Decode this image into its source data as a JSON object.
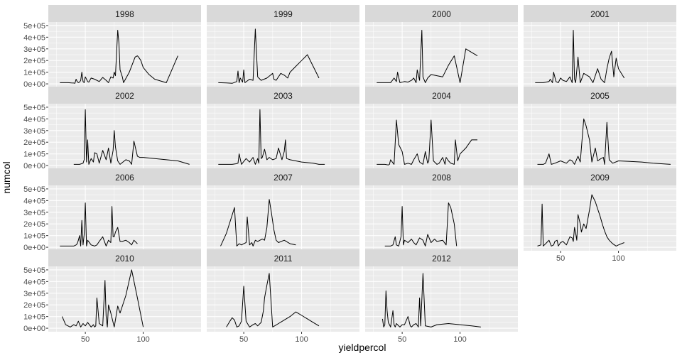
{
  "chart_data": {
    "type": "line",
    "facet_layout": "wrap 4 columns",
    "xlabel": "yieldpercol",
    "ylabel": "numcol",
    "xlim": [
      18,
      150
    ],
    "ylim": [
      -30000,
      530000
    ],
    "x_ticks": [
      50,
      100
    ],
    "x_tick_labels": [
      "50",
      "100"
    ],
    "y_ticks": [
      0,
      100000,
      200000,
      300000,
      400000,
      500000
    ],
    "y_tick_labels": [
      "0e+00",
      "1e+05",
      "2e+05",
      "3e+05",
      "4e+05",
      "5e+05"
    ],
    "x_minor_ticks": [
      25,
      75,
      125
    ],
    "y_minor_ticks": [
      50000,
      150000,
      250000,
      350000,
      450000
    ],
    "style": {
      "panel_bg": "#ebebeb",
      "strip_bg": "#d9d9d9",
      "grid_color": "#ffffff",
      "line_color": "#000000"
    },
    "panels": [
      {
        "label": "1998",
        "x": [
          28,
          35,
          38,
          40,
          41,
          42,
          43,
          44,
          45,
          46,
          47,
          48,
          49,
          50,
          52,
          53,
          55,
          58,
          62,
          65,
          68,
          70,
          72,
          74,
          75,
          76,
          78,
          79,
          80,
          82,
          83,
          88,
          93,
          95,
          96,
          98,
          100,
          105,
          110,
          115,
          120,
          130
        ],
        "y": [
          10000,
          10000,
          8000,
          7000,
          5000,
          40000,
          20000,
          10000,
          15000,
          30000,
          100000,
          20000,
          10000,
          60000,
          20000,
          15000,
          50000,
          40000,
          20000,
          55000,
          30000,
          10000,
          60000,
          50000,
          100000,
          70000,
          460000,
          350000,
          120000,
          60000,
          10000,
          100000,
          230000,
          240000,
          230000,
          200000,
          140000,
          80000,
          40000,
          25000,
          10000,
          240000
        ]
      },
      {
        "label": "1999",
        "x": [
          28,
          35,
          40,
          44,
          45,
          46,
          47,
          49,
          50,
          51,
          55,
          58,
          60,
          62,
          63,
          65,
          70,
          75,
          76,
          78,
          82,
          85,
          88,
          90,
          95,
          100,
          105,
          110,
          115
        ],
        "y": [
          10000,
          8000,
          5000,
          20000,
          110000,
          10000,
          50000,
          15000,
          120000,
          10000,
          40000,
          30000,
          470000,
          60000,
          50000,
          30000,
          50000,
          90000,
          40000,
          30000,
          90000,
          75000,
          50000,
          100000,
          150000,
          200000,
          250000,
          150000,
          50000
        ]
      },
      {
        "label": "2000",
        "x": [
          28,
          40,
          43,
          45,
          46,
          48,
          52,
          55,
          58,
          60,
          62,
          63,
          65,
          67,
          68,
          70,
          72,
          75,
          80,
          85,
          90,
          95,
          100,
          105,
          110,
          115
        ],
        "y": [
          10000,
          10000,
          50000,
          20000,
          100000,
          10000,
          20000,
          15000,
          30000,
          50000,
          10000,
          120000,
          30000,
          460000,
          60000,
          10000,
          50000,
          80000,
          70000,
          60000,
          160000,
          240000,
          10000,
          300000,
          270000,
          240000
        ]
      },
      {
        "label": "2001",
        "x": [
          28,
          35,
          40,
          41,
          43,
          44,
          46,
          48,
          50,
          52,
          55,
          58,
          60,
          61,
          62,
          63,
          65,
          67,
          70,
          75,
          78,
          82,
          85,
          88,
          90,
          92,
          94,
          96,
          98,
          100,
          105
        ],
        "y": [
          10000,
          10000,
          20000,
          40000,
          10000,
          100000,
          20000,
          10000,
          50000,
          30000,
          20000,
          60000,
          10000,
          460000,
          40000,
          10000,
          230000,
          10000,
          90000,
          60000,
          10000,
          130000,
          40000,
          10000,
          130000,
          220000,
          280000,
          60000,
          220000,
          130000,
          50000
        ]
      },
      {
        "label": "2002",
        "x": [
          40,
          45,
          48,
          49,
          50,
          51,
          52,
          53,
          55,
          57,
          58,
          60,
          62,
          65,
          68,
          70,
          72,
          74,
          75,
          76,
          78,
          80,
          85,
          88,
          90,
          92,
          95,
          97,
          100,
          110,
          120,
          130,
          140
        ],
        "y": [
          10000,
          10000,
          20000,
          50000,
          480000,
          30000,
          220000,
          10000,
          60000,
          30000,
          110000,
          100000,
          20000,
          130000,
          50000,
          150000,
          20000,
          130000,
          300000,
          160000,
          40000,
          10000,
          50000,
          40000,
          10000,
          210000,
          80000,
          70000,
          70000,
          60000,
          50000,
          40000,
          10000
        ]
      },
      {
        "label": "2003",
        "x": [
          28,
          40,
          43,
          45,
          46,
          48,
          52,
          55,
          58,
          60,
          62,
          63,
          64,
          65,
          66,
          68,
          70,
          72,
          75,
          78,
          80,
          83,
          85,
          86,
          87,
          90,
          95,
          100,
          110,
          115,
          120
        ],
        "y": [
          10000,
          10000,
          15000,
          20000,
          100000,
          10000,
          60000,
          30000,
          70000,
          10000,
          60000,
          20000,
          480000,
          60000,
          70000,
          140000,
          50000,
          70000,
          50000,
          60000,
          150000,
          50000,
          120000,
          220000,
          60000,
          50000,
          40000,
          30000,
          20000,
          10000,
          10000
        ]
      },
      {
        "label": "2004",
        "x": [
          28,
          35,
          38,
          39,
          40,
          43,
          45,
          47,
          50,
          52,
          55,
          58,
          60,
          63,
          65,
          68,
          70,
          72,
          73,
          75,
          77,
          80,
          82,
          85,
          87,
          88,
          90,
          92,
          95,
          96,
          98,
          100,
          105,
          110,
          115
        ],
        "y": [
          10000,
          10000,
          5000,
          10000,
          50000,
          10000,
          390000,
          180000,
          120000,
          10000,
          20000,
          10000,
          50000,
          100000,
          30000,
          10000,
          120000,
          20000,
          40000,
          390000,
          40000,
          10000,
          20000,
          70000,
          10000,
          70000,
          40000,
          20000,
          10000,
          220000,
          40000,
          100000,
          150000,
          220000,
          220000
        ]
      },
      {
        "label": "2005",
        "x": [
          30,
          35,
          37,
          40,
          42,
          45,
          50,
          55,
          58,
          60,
          62,
          65,
          67,
          70,
          72,
          75,
          77,
          80,
          82,
          85,
          87,
          88,
          90,
          92,
          95,
          100,
          110,
          120,
          130,
          145
        ],
        "y": [
          10000,
          10000,
          20000,
          100000,
          10000,
          20000,
          40000,
          20000,
          50000,
          40000,
          10000,
          80000,
          30000,
          400000,
          340000,
          220000,
          30000,
          150000,
          40000,
          60000,
          70000,
          10000,
          370000,
          50000,
          20000,
          40000,
          35000,
          30000,
          20000,
          10000
        ]
      },
      {
        "label": "2006",
        "x": [
          28,
          35,
          40,
          42,
          43,
          44,
          45,
          46,
          47,
          48,
          49,
          50,
          51,
          52,
          55,
          58,
          60,
          62,
          65,
          68,
          70,
          72,
          73,
          74,
          75,
          76,
          78,
          80,
          82,
          85,
          88,
          90,
          92,
          95
        ],
        "y": [
          10000,
          10000,
          10000,
          20000,
          30000,
          60000,
          100000,
          10000,
          230000,
          20000,
          110000,
          380000,
          10000,
          60000,
          20000,
          10000,
          20000,
          50000,
          90000,
          10000,
          60000,
          40000,
          350000,
          90000,
          90000,
          130000,
          170000,
          50000,
          50000,
          60000,
          40000,
          20000,
          60000,
          30000
        ]
      },
      {
        "label": "2007",
        "x": [
          30,
          35,
          42,
          44,
          46,
          48,
          50,
          52,
          53,
          55,
          57,
          58,
          60,
          62,
          64,
          66,
          68,
          70,
          72,
          74,
          76,
          78,
          80,
          85,
          90,
          95
        ],
        "y": [
          10000,
          120000,
          340000,
          10000,
          30000,
          20000,
          30000,
          40000,
          260000,
          20000,
          40000,
          10000,
          60000,
          50000,
          60000,
          70000,
          60000,
          170000,
          410000,
          290000,
          150000,
          60000,
          40000,
          60000,
          30000,
          20000
        ]
      },
      {
        "label": "2008",
        "x": [
          35,
          40,
          42,
          44,
          45,
          47,
          49,
          50,
          51,
          52,
          55,
          58,
          60,
          62,
          65,
          68,
          70,
          72,
          75,
          78,
          80,
          85,
          88,
          90,
          92,
          95,
          97
        ],
        "y": [
          10000,
          10000,
          20000,
          90000,
          20000,
          10000,
          90000,
          350000,
          20000,
          60000,
          40000,
          70000,
          40000,
          20000,
          80000,
          60000,
          10000,
          110000,
          40000,
          70000,
          50000,
          60000,
          20000,
          380000,
          340000,
          200000,
          10000
        ]
      },
      {
        "label": "2009",
        "x": [
          30,
          33,
          34,
          35,
          36,
          38,
          40,
          42,
          44,
          45,
          47,
          48,
          50,
          52,
          55,
          58,
          60,
          61,
          62,
          63,
          64,
          65,
          67,
          68,
          70,
          72,
          75,
          77,
          80,
          82,
          84,
          86,
          88,
          90,
          92,
          95,
          98,
          100,
          105
        ],
        "y": [
          10000,
          20000,
          370000,
          10000,
          20000,
          40000,
          60000,
          10000,
          20000,
          50000,
          60000,
          10000,
          40000,
          50000,
          20000,
          90000,
          80000,
          50000,
          170000,
          120000,
          60000,
          280000,
          200000,
          130000,
          200000,
          160000,
          320000,
          450000,
          390000,
          330000,
          270000,
          200000,
          140000,
          90000,
          60000,
          30000,
          10000,
          20000,
          40000
        ]
      },
      {
        "label": "2010",
        "x": [
          30,
          33,
          35,
          37,
          40,
          42,
          44,
          46,
          48,
          50,
          52,
          55,
          57,
          58,
          59,
          60,
          62,
          65,
          67,
          68,
          69,
          70,
          72,
          75,
          78,
          80,
          85,
          90,
          95,
          100
        ],
        "y": [
          100000,
          30000,
          20000,
          10000,
          30000,
          20000,
          60000,
          10000,
          40000,
          20000,
          50000,
          10000,
          30000,
          10000,
          20000,
          260000,
          40000,
          20000,
          410000,
          100000,
          10000,
          200000,
          130000,
          10000,
          190000,
          130000,
          280000,
          500000,
          260000,
          10000
        ]
      },
      {
        "label": "2011",
        "x": [
          35,
          38,
          40,
          42,
          44,
          46,
          48,
          50,
          52,
          55,
          58,
          60,
          62,
          65,
          67,
          68,
          70,
          72,
          75,
          80,
          85,
          90,
          95,
          100,
          105,
          110,
          115
        ],
        "y": [
          10000,
          60000,
          90000,
          70000,
          10000,
          20000,
          60000,
          360000,
          60000,
          10000,
          30000,
          40000,
          20000,
          50000,
          150000,
          260000,
          370000,
          470000,
          10000,
          40000,
          70000,
          100000,
          140000,
          110000,
          80000,
          50000,
          20000
        ]
      },
      {
        "label": "2012",
        "x": [
          33,
          34,
          35,
          36,
          37,
          38,
          40,
          42,
          43,
          44,
          45,
          47,
          48,
          50,
          52,
          55,
          57,
          58,
          60,
          62,
          64,
          65,
          66,
          68,
          70,
          75,
          80,
          90,
          100,
          110,
          118
        ],
        "y": [
          80000,
          10000,
          30000,
          320000,
          150000,
          50000,
          10000,
          150000,
          30000,
          10000,
          40000,
          20000,
          10000,
          30000,
          30000,
          100000,
          20000,
          10000,
          30000,
          40000,
          10000,
          260000,
          20000,
          470000,
          20000,
          10000,
          30000,
          40000,
          30000,
          20000,
          10000
        ]
      }
    ]
  }
}
